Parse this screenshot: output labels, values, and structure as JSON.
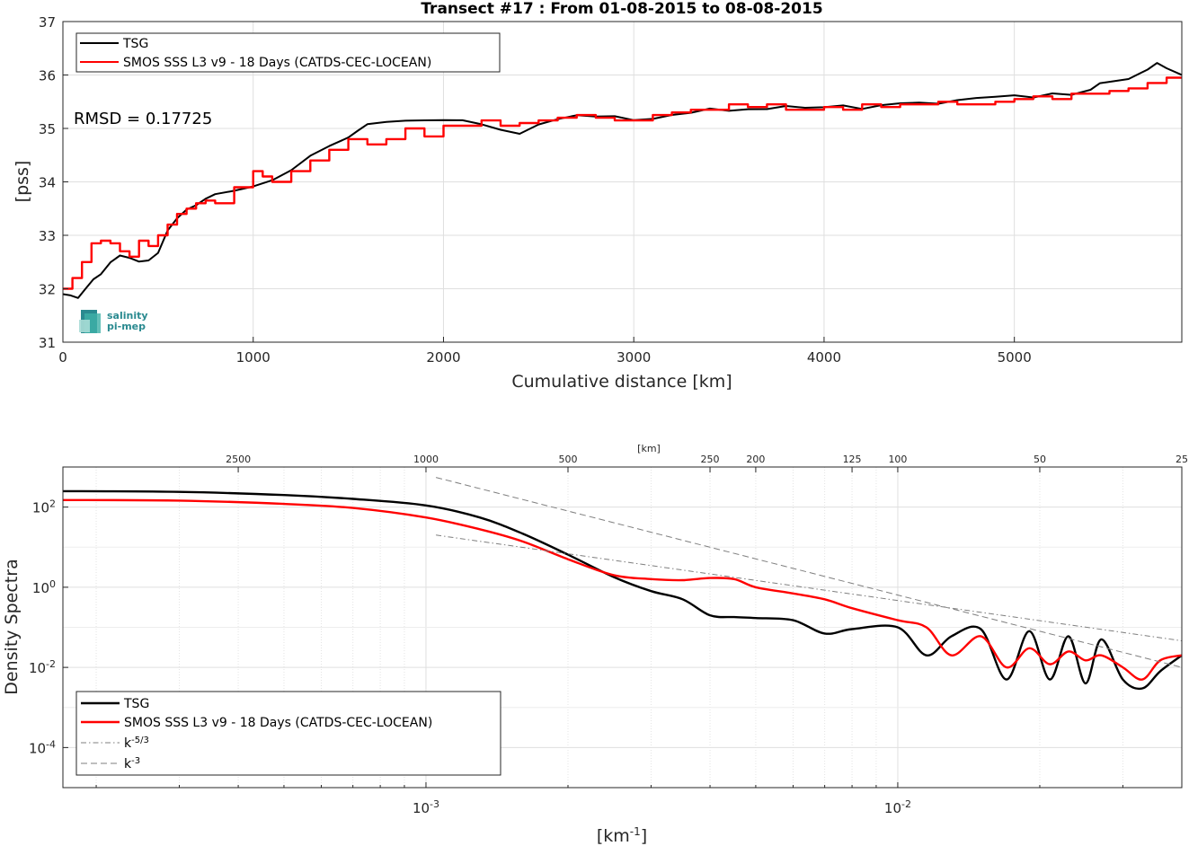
{
  "chart_data": [
    {
      "type": "line",
      "title": "Transect #17 : From 01-08-2015 to 08-08-2015",
      "xlabel": "Cumulative distance [km]",
      "ylabel": "[pss]",
      "xlim": [
        0,
        5880
      ],
      "ylim": [
        31,
        37
      ],
      "xticks": [
        "0",
        "1000",
        "2000",
        "3000",
        "4000",
        "5000"
      ],
      "yticks": [
        "31",
        "32",
        "33",
        "34",
        "35",
        "36",
        "37"
      ],
      "grid": true,
      "legend_position": "top-left",
      "annotation": "RMSD = 0.17725",
      "logo": [
        "salinity",
        "pi-mep"
      ],
      "series": [
        {
          "name": "TSG",
          "color": "#000000",
          "x": [
            0,
            40,
            80,
            120,
            160,
            200,
            250,
            300,
            350,
            400,
            450,
            500,
            550,
            600,
            650,
            700,
            750,
            800,
            900,
            1000,
            1100,
            1200,
            1300,
            1400,
            1500,
            1550,
            1600,
            1700,
            1800,
            1900,
            2000,
            2100,
            2200,
            2300,
            2400,
            2500,
            2600,
            2700,
            2800,
            2900,
            3000,
            3100,
            3200,
            3300,
            3400,
            3500,
            3600,
            3700,
            3800,
            3900,
            4000,
            4100,
            4200,
            4300,
            4400,
            4500,
            4600,
            4700,
            4800,
            4900,
            5000,
            5100,
            5200,
            5300,
            5400,
            5450,
            5500,
            5600,
            5700,
            5750,
            5800,
            5880
          ],
          "y": [
            31.9,
            31.85,
            31.8,
            32.0,
            32.2,
            32.3,
            32.5,
            32.6,
            32.55,
            32.5,
            32.55,
            32.7,
            33.1,
            33.3,
            33.45,
            33.55,
            33.7,
            33.8,
            33.85,
            33.9,
            34.0,
            34.2,
            34.5,
            34.7,
            34.85,
            34.95,
            35.05,
            35.1,
            35.15,
            35.18,
            35.18,
            35.15,
            35.05,
            34.95,
            34.9,
            35.1,
            35.2,
            35.25,
            35.2,
            35.2,
            35.15,
            35.2,
            35.28,
            35.3,
            35.35,
            35.3,
            35.35,
            35.38,
            35.45,
            35.4,
            35.38,
            35.4,
            35.35,
            35.45,
            35.5,
            35.5,
            35.45,
            35.5,
            35.55,
            35.6,
            35.65,
            35.6,
            35.65,
            35.6,
            35.7,
            35.85,
            35.9,
            35.95,
            36.1,
            36.2,
            36.1,
            36.0
          ]
        },
        {
          "name": "SMOS SSS L3 v9 - 18 Days (CATDS-CEC-LOCEAN)",
          "color": "#ff0000",
          "x": [
            0,
            50,
            100,
            150,
            200,
            250,
            300,
            350,
            400,
            450,
            500,
            550,
            600,
            650,
            700,
            750,
            800,
            900,
            1000,
            1050,
            1100,
            1200,
            1300,
            1400,
            1500,
            1600,
            1700,
            1800,
            1900,
            2000,
            2100,
            2200,
            2300,
            2400,
            2500,
            2600,
            2700,
            2800,
            2900,
            3000,
            3100,
            3200,
            3300,
            3400,
            3500,
            3600,
            3700,
            3800,
            3900,
            4000,
            4100,
            4200,
            4300,
            4400,
            4500,
            4600,
            4700,
            4800,
            4900,
            5000,
            5100,
            5200,
            5300,
            5400,
            5500,
            5600,
            5700,
            5800,
            5880
          ],
          "y": [
            32.0,
            32.2,
            32.5,
            32.85,
            32.9,
            32.85,
            32.7,
            32.6,
            32.9,
            32.8,
            33.0,
            33.2,
            33.4,
            33.5,
            33.6,
            33.65,
            33.6,
            33.9,
            34.2,
            34.1,
            34.0,
            34.2,
            34.4,
            34.6,
            34.8,
            34.7,
            34.8,
            35.0,
            34.85,
            35.05,
            35.05,
            35.15,
            35.05,
            35.1,
            35.15,
            35.2,
            35.25,
            35.2,
            35.15,
            35.15,
            35.25,
            35.3,
            35.35,
            35.35,
            35.45,
            35.4,
            35.45,
            35.35,
            35.35,
            35.4,
            35.35,
            35.45,
            35.4,
            35.45,
            35.45,
            35.5,
            35.45,
            35.45,
            35.5,
            35.55,
            35.6,
            35.55,
            35.65,
            35.65,
            35.7,
            35.75,
            35.85,
            35.95,
            35.95
          ]
        }
      ]
    },
    {
      "type": "line",
      "log_x": true,
      "log_y": true,
      "xlabel": "[km-1]",
      "ylabel": "Density Spectra",
      "top_axis_label": "[km]",
      "xlim": [
        0.00017,
        0.04
      ],
      "ylim": [
        1e-05,
        1000
      ],
      "xticks": [
        "10-3",
        "10-2"
      ],
      "yticks": [
        "10-4",
        "10-2",
        "100",
        "102"
      ],
      "top_ticks": [
        "2500",
        "1000",
        "500",
        "250",
        "200",
        "125",
        "100",
        "50",
        "25"
      ],
      "grid": true,
      "legend_position": "bottom-left",
      "series": [
        {
          "name": "TSG",
          "color": "#000000",
          "x": [
            0.00017,
            0.0003,
            0.0005,
            0.0007,
            0.001,
            0.0013,
            0.0016,
            0.002,
            0.0025,
            0.003,
            0.0035,
            0.004,
            0.0045,
            0.005,
            0.006,
            0.007,
            0.008,
            0.01,
            0.0115,
            0.013,
            0.015,
            0.017,
            0.019,
            0.021,
            0.023,
            0.025,
            0.027,
            0.03,
            0.033,
            0.036,
            0.04
          ],
          "y": [
            250,
            240,
            200,
            160,
            110,
            55,
            22,
            6.5,
            1.8,
            0.8,
            0.5,
            0.2,
            0.18,
            0.17,
            0.15,
            0.07,
            0.09,
            0.1,
            0.02,
            0.06,
            0.09,
            0.005,
            0.08,
            0.005,
            0.06,
            0.004,
            0.05,
            0.005,
            0.003,
            0.008,
            0.02
          ]
        },
        {
          "name": "SMOS SSS L3 v9 - 18 Days (CATDS-CEC-LOCEAN)",
          "color": "#ff0000",
          "x": [
            0.00017,
            0.0003,
            0.0005,
            0.0007,
            0.001,
            0.0013,
            0.0016,
            0.002,
            0.0025,
            0.003,
            0.0035,
            0.004,
            0.0045,
            0.005,
            0.006,
            0.007,
            0.008,
            0.01,
            0.0115,
            0.013,
            0.015,
            0.017,
            0.019,
            0.021,
            0.023,
            0.025,
            0.027,
            0.03,
            0.033,
            0.036,
            0.04
          ],
          "y": [
            150,
            145,
            120,
            95,
            55,
            28,
            14,
            5,
            2,
            1.6,
            1.5,
            1.7,
            1.6,
            1.0,
            0.7,
            0.5,
            0.3,
            0.15,
            0.1,
            0.02,
            0.06,
            0.01,
            0.03,
            0.012,
            0.025,
            0.015,
            0.02,
            0.01,
            0.005,
            0.015,
            0.02
          ]
        },
        {
          "name": "k-5/3",
          "color": "#7f7f7f",
          "dash": "dashdot",
          "x": [
            0.00105,
            0.04
          ],
          "y": [
            20,
            0.046
          ]
        },
        {
          "name": "k-3",
          "color": "#7f7f7f",
          "dash": "dashed",
          "x": [
            0.00105,
            0.04
          ],
          "y": [
            550,
            0.01
          ]
        }
      ]
    }
  ]
}
